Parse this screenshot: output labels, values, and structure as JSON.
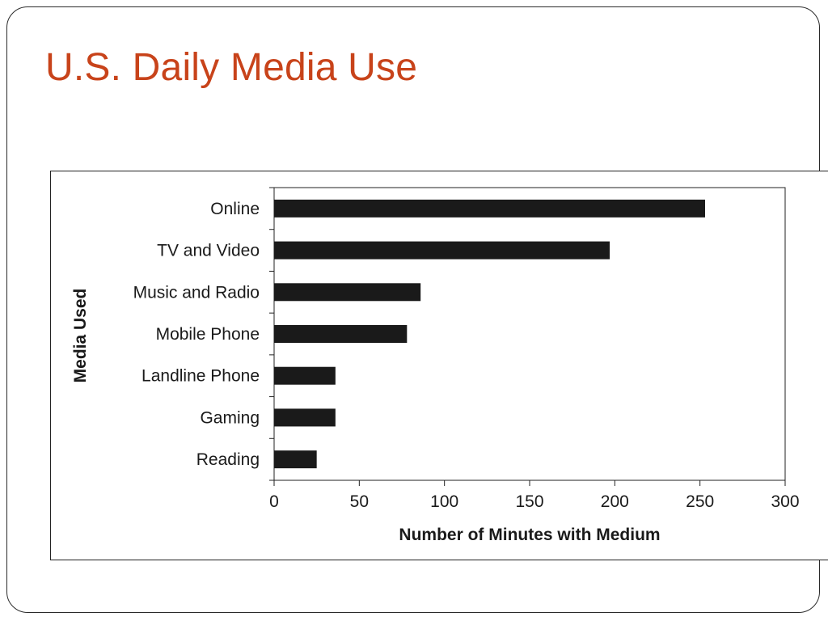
{
  "slide": {
    "title": "U.S. Daily Media Use",
    "title_color": "#c8431a"
  },
  "chart_data": {
    "type": "bar",
    "orientation": "horizontal",
    "categories": [
      "Online",
      "TV and Video",
      "Music and Radio",
      "Mobile Phone",
      "Landline Phone",
      "Gaming",
      "Reading"
    ],
    "values": [
      253,
      197,
      86,
      78,
      36,
      36,
      25
    ],
    "xlabel": "Number of Minutes with Medium",
    "ylabel": "Media Used",
    "xlim": [
      0,
      300
    ],
    "xticks": [
      0,
      50,
      100,
      150,
      200,
      250,
      300
    ],
    "grid": false,
    "legend": "none",
    "bar_color": "#1a1a1a"
  }
}
